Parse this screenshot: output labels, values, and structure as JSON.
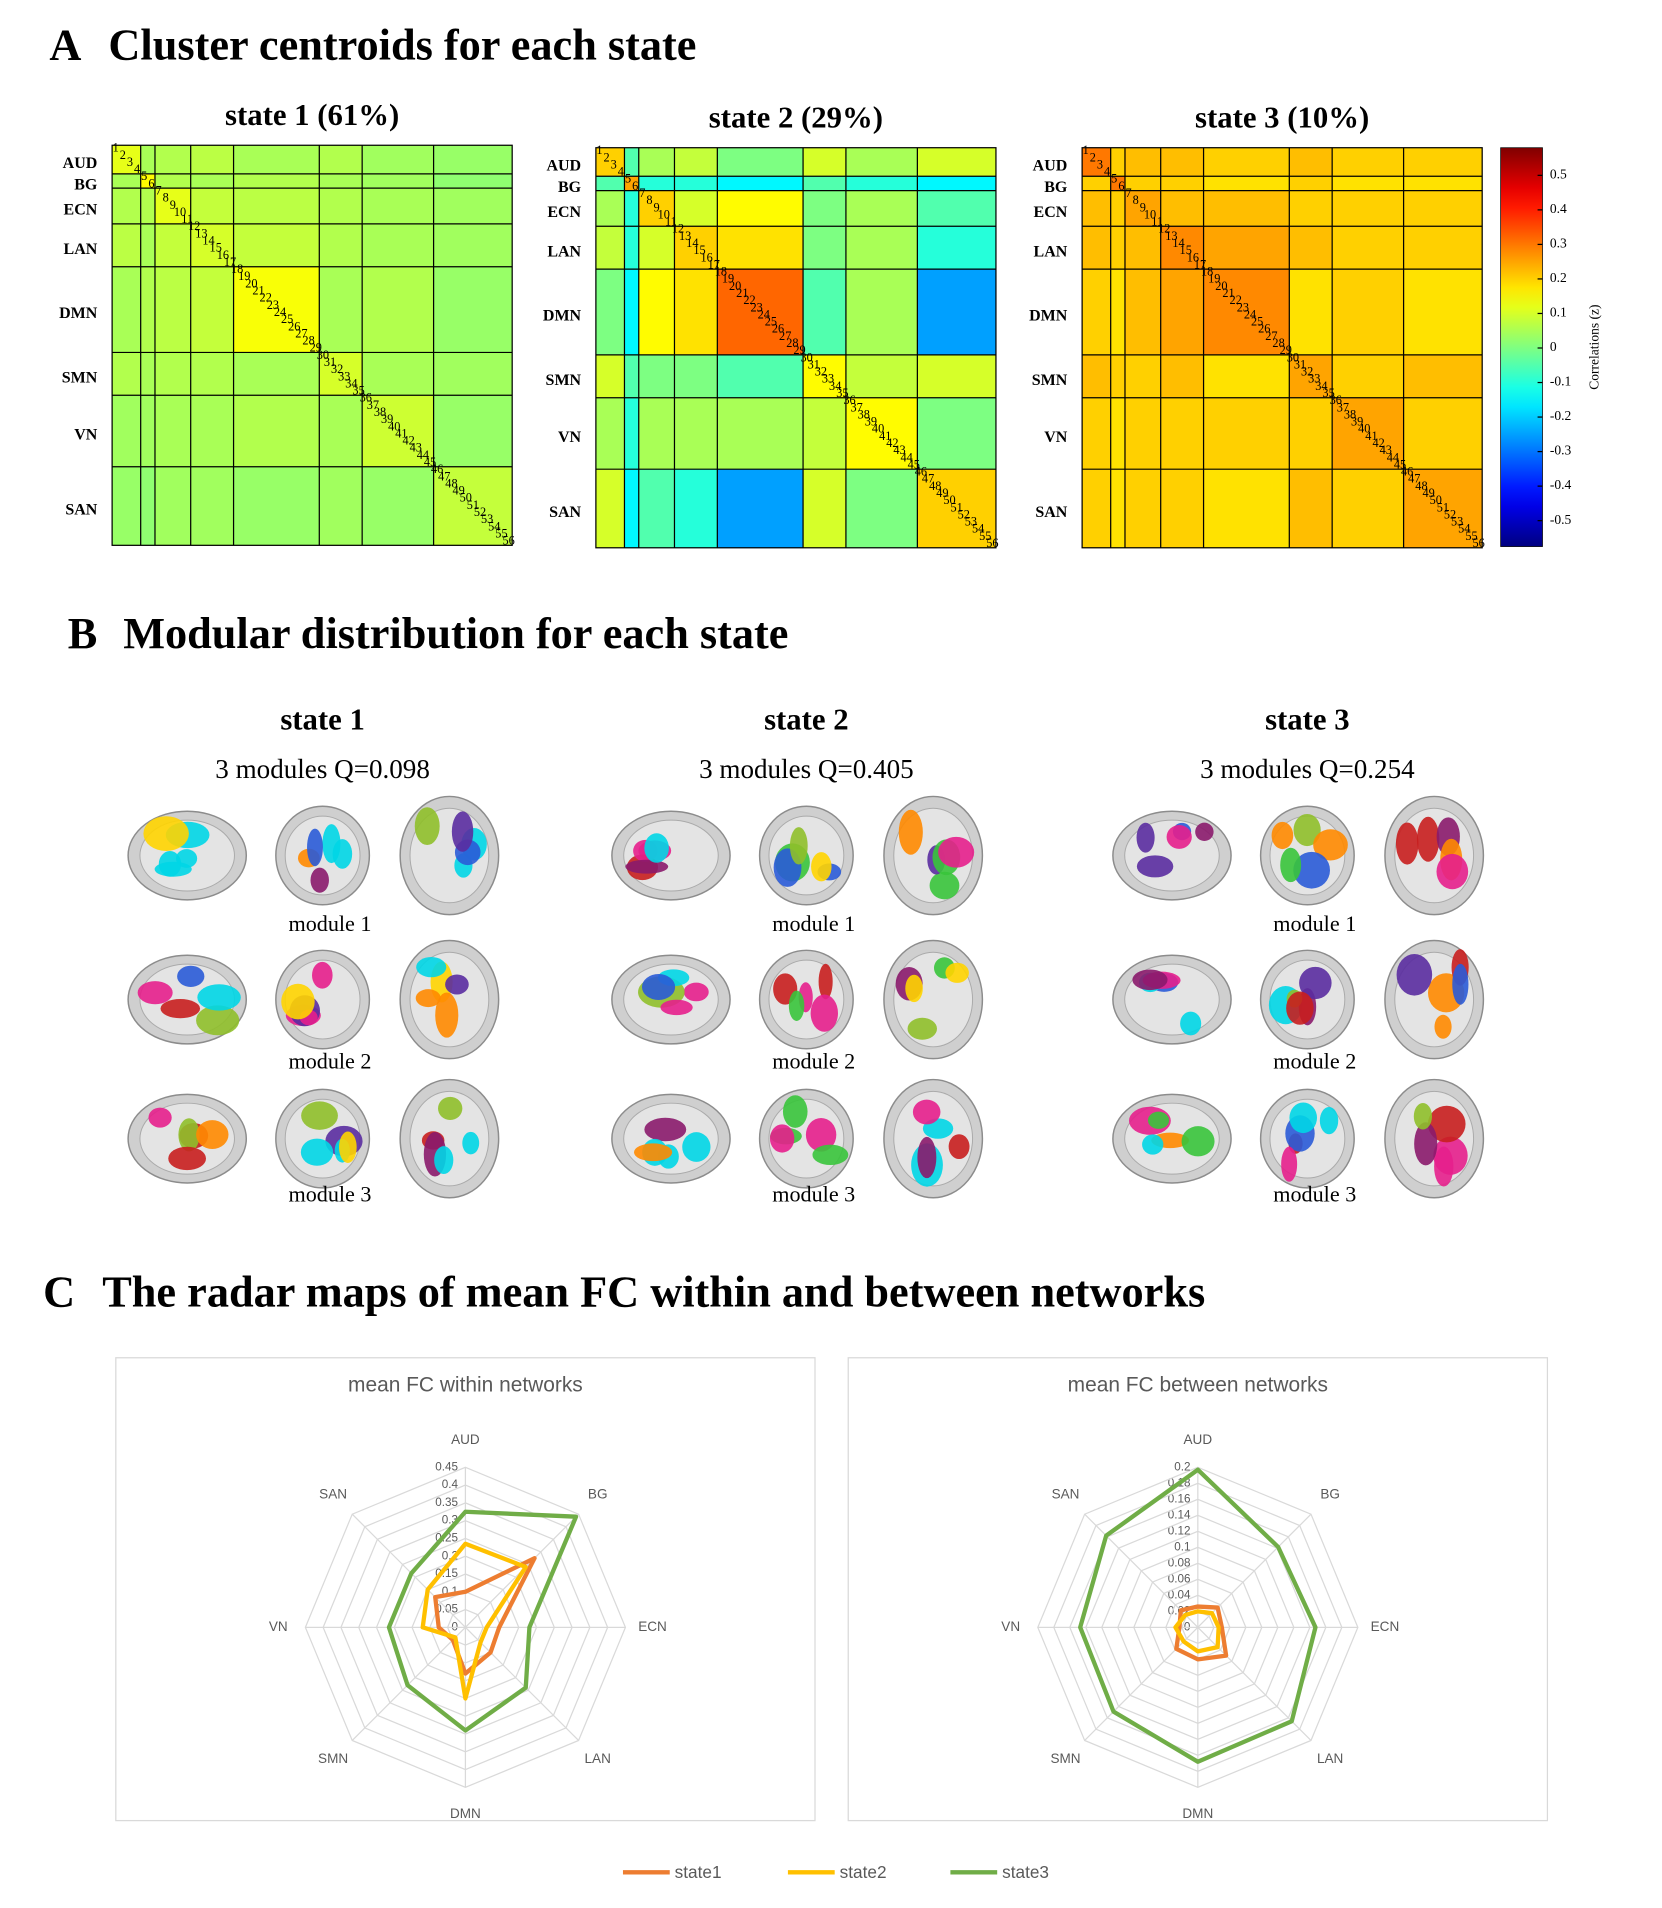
{
  "panels": {
    "a": {
      "label": "A",
      "title": "Cluster centroids for each state"
    },
    "b": {
      "label": "B",
      "title": "Modular distribution for each state"
    },
    "c": {
      "label": "C",
      "title": "The radar maps of mean FC within and between networks"
    }
  },
  "colorbar": {
    "label": "Correlations (z)",
    "zlim": [
      -0.575,
      0.58
    ],
    "ticks": [
      0.5,
      0.4,
      0.3,
      0.2,
      0.1,
      0,
      -0.1,
      -0.2,
      -0.3,
      -0.4,
      -0.5
    ]
  },
  "modules": [
    {
      "title": "state 1",
      "subtitle": "3 modules Q=0.098",
      "module_labels": [
        "module 1",
        "module 2",
        "module 3"
      ]
    },
    {
      "title": "state 2",
      "subtitle": "3 modules Q=0.405",
      "module_labels": [
        "module 1",
        "module 2",
        "module 3"
      ]
    },
    {
      "title": "state 3",
      "subtitle": "3 modules Q=0.254",
      "module_labels": [
        "module 1",
        "module 2",
        "module 3"
      ]
    }
  ],
  "legend": [
    {
      "name": "state1",
      "color": "#ed7d31"
    },
    {
      "name": "state2",
      "color": "#ffc000"
    },
    {
      "name": "state3",
      "color": "#70ad47"
    }
  ],
  "chart_data": [
    {
      "type": "heatmap",
      "title": "state 1 (61%)",
      "networks": [
        {
          "name": "AUD",
          "nodes": [
            1,
            2,
            3,
            4
          ]
        },
        {
          "name": "BG",
          "nodes": [
            5,
            6
          ]
        },
        {
          "name": "ECN",
          "nodes": [
            7,
            8,
            9,
            10,
            11
          ]
        },
        {
          "name": "LAN",
          "nodes": [
            12,
            13,
            14,
            15,
            16,
            17
          ]
        },
        {
          "name": "DMN",
          "nodes": [
            18,
            19,
            20,
            21,
            22,
            23,
            24,
            25,
            26,
            27,
            28,
            29
          ]
        },
        {
          "name": "SMN",
          "nodes": [
            30,
            31,
            32,
            33,
            34,
            35
          ]
        },
        {
          "name": "VN",
          "nodes": [
            36,
            37,
            38,
            39,
            40,
            41,
            42,
            43,
            44,
            45
          ]
        },
        {
          "name": "SAN",
          "nodes": [
            46,
            47,
            48,
            49,
            50,
            51,
            52,
            53,
            54,
            55,
            56
          ]
        }
      ],
      "values": [
        [
          0.12,
          0.05,
          0.06,
          0.07,
          0.05,
          0.06,
          0.04,
          0.03
        ],
        [
          0.05,
          0.15,
          0.06,
          0.05,
          0.06,
          0.05,
          0.04,
          0.02
        ],
        [
          0.06,
          0.06,
          0.12,
          0.08,
          0.07,
          0.06,
          0.05,
          0.04
        ],
        [
          0.07,
          0.05,
          0.08,
          0.1,
          0.08,
          0.06,
          0.05,
          0.04
        ],
        [
          0.05,
          0.06,
          0.07,
          0.08,
          0.14,
          0.05,
          0.06,
          0.03
        ],
        [
          0.06,
          0.05,
          0.06,
          0.06,
          0.05,
          0.1,
          0.05,
          0.04
        ],
        [
          0.04,
          0.04,
          0.05,
          0.05,
          0.06,
          0.05,
          0.09,
          0.03
        ],
        [
          0.03,
          0.02,
          0.04,
          0.04,
          0.03,
          0.04,
          0.03,
          0.08
        ]
      ]
    },
    {
      "type": "heatmap",
      "title": "state 2 (29%)",
      "networks": [
        {
          "name": "AUD",
          "nodes": [
            1,
            2,
            3,
            4
          ]
        },
        {
          "name": "BG",
          "nodes": [
            5,
            6
          ]
        },
        {
          "name": "ECN",
          "nodes": [
            7,
            8,
            9,
            10,
            11
          ]
        },
        {
          "name": "LAN",
          "nodes": [
            12,
            13,
            14,
            15,
            16,
            17
          ]
        },
        {
          "name": "DMN",
          "nodes": [
            18,
            19,
            20,
            21,
            22,
            23,
            24,
            25,
            26,
            27,
            28,
            29
          ]
        },
        {
          "name": "SMN",
          "nodes": [
            30,
            31,
            32,
            33,
            34,
            35
          ]
        },
        {
          "name": "VN",
          "nodes": [
            36,
            37,
            38,
            39,
            40,
            41,
            42,
            43,
            44,
            45
          ]
        },
        {
          "name": "SAN",
          "nodes": [
            46,
            47,
            48,
            49,
            50,
            51,
            52,
            53,
            54,
            55,
            56
          ]
        }
      ],
      "values": [
        [
          0.2,
          -0.05,
          0.05,
          0.08,
          0.0,
          0.1,
          0.05,
          0.1
        ],
        [
          -0.05,
          0.25,
          -0.1,
          -0.1,
          -0.15,
          -0.05,
          -0.1,
          -0.15
        ],
        [
          0.05,
          -0.1,
          0.2,
          0.1,
          0.15,
          0.0,
          0.05,
          -0.05
        ],
        [
          0.08,
          -0.1,
          0.1,
          0.2,
          0.18,
          0.0,
          0.05,
          -0.1
        ],
        [
          0.0,
          -0.15,
          0.15,
          0.18,
          0.32,
          -0.05,
          0.05,
          -0.25
        ],
        [
          0.1,
          -0.05,
          0.0,
          0.0,
          -0.05,
          0.15,
          0.08,
          0.1
        ],
        [
          0.05,
          -0.1,
          0.05,
          0.05,
          0.05,
          0.08,
          0.15,
          0.0
        ],
        [
          0.1,
          -0.15,
          -0.05,
          -0.1,
          -0.25,
          0.1,
          0.0,
          0.2
        ]
      ]
    },
    {
      "type": "heatmap",
      "title": "state 3 (10%)",
      "networks": [
        {
          "name": "AUD",
          "nodes": [
            1,
            2,
            3,
            4
          ]
        },
        {
          "name": "BG",
          "nodes": [
            5,
            6
          ]
        },
        {
          "name": "ECN",
          "nodes": [
            7,
            8,
            9,
            10,
            11
          ]
        },
        {
          "name": "LAN",
          "nodes": [
            12,
            13,
            14,
            15,
            16,
            17
          ]
        },
        {
          "name": "DMN",
          "nodes": [
            18,
            19,
            20,
            21,
            22,
            23,
            24,
            25,
            26,
            27,
            28,
            29
          ]
        },
        {
          "name": "SMN",
          "nodes": [
            30,
            31,
            32,
            33,
            34,
            35
          ]
        },
        {
          "name": "VN",
          "nodes": [
            36,
            37,
            38,
            39,
            40,
            41,
            42,
            43,
            44,
            45
          ]
        },
        {
          "name": "SAN",
          "nodes": [
            46,
            47,
            48,
            49,
            50,
            51,
            52,
            53,
            54,
            55,
            56
          ]
        }
      ],
      "values": [
        [
          0.3,
          0.2,
          0.22,
          0.22,
          0.2,
          0.22,
          0.2,
          0.2
        ],
        [
          0.2,
          0.3,
          0.2,
          0.2,
          0.18,
          0.2,
          0.18,
          0.18
        ],
        [
          0.22,
          0.2,
          0.25,
          0.22,
          0.22,
          0.2,
          0.2,
          0.2
        ],
        [
          0.22,
          0.2,
          0.22,
          0.28,
          0.25,
          0.22,
          0.2,
          0.2
        ],
        [
          0.2,
          0.18,
          0.22,
          0.25,
          0.28,
          0.18,
          0.2,
          0.18
        ],
        [
          0.22,
          0.2,
          0.2,
          0.22,
          0.18,
          0.25,
          0.2,
          0.22
        ],
        [
          0.2,
          0.18,
          0.2,
          0.2,
          0.2,
          0.2,
          0.25,
          0.2
        ],
        [
          0.2,
          0.18,
          0.2,
          0.2,
          0.18,
          0.22,
          0.2,
          0.25
        ]
      ]
    },
    {
      "type": "radar",
      "title": "mean FC within networks",
      "axes": [
        "AUD",
        "BG",
        "ECN",
        "LAN",
        "DMN",
        "SMN",
        "VN",
        "SAN"
      ],
      "rlim": [
        0,
        0.45
      ],
      "rticks": [
        0,
        0.05,
        0.1,
        0.15,
        0.2,
        0.25,
        0.3,
        0.35,
        0.4,
        0.45
      ],
      "series": [
        {
          "values": [
            0.1,
            0.275,
            0.095,
            0.1,
            0.13,
            0.05,
            0.075,
            0.12
          ]
        },
        {
          "values": [
            0.235,
            0.24,
            0.06,
            0.06,
            0.2,
            0.04,
            0.12,
            0.15
          ]
        },
        {
          "values": [
            0.325,
            0.44,
            0.18,
            0.24,
            0.29,
            0.23,
            0.215,
            0.215
          ]
        }
      ]
    },
    {
      "type": "radar",
      "title": "mean FC between networks",
      "axes": [
        "AUD",
        "BG",
        "ECN",
        "LAN",
        "DMN",
        "SMN",
        "VN",
        "SAN"
      ],
      "rlim": [
        0,
        0.2
      ],
      "rticks": [
        0,
        0.02,
        0.04,
        0.06,
        0.08,
        0.1,
        0.12,
        0.14,
        0.16,
        0.18,
        0.2
      ],
      "series": [
        {
          "values": [
            0.026,
            0.035,
            0.03,
            0.05,
            0.04,
            0.038,
            0.023,
            0.03
          ]
        },
        {
          "values": [
            0.02,
            0.025,
            0.026,
            0.035,
            0.03,
            0.025,
            0.028,
            0.022
          ]
        },
        {
          "values": [
            0.197,
            0.142,
            0.147,
            0.166,
            0.168,
            0.149,
            0.147,
            0.162
          ]
        }
      ]
    }
  ]
}
